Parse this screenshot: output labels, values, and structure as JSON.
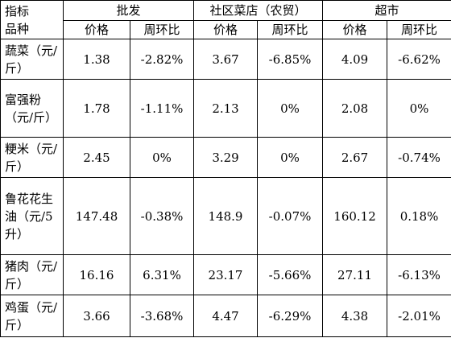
{
  "header": {
    "corner_line1": "指标",
    "corner_line2": "品种",
    "groups": [
      "批发",
      "社区菜店（农贸）",
      "超市"
    ],
    "price_label": "价格",
    "change_label": "周环比"
  },
  "rows": [
    {
      "name": "蔬菜（元/斤）",
      "values": [
        "1.38",
        "-2.82%",
        "3.67",
        "-6.85%",
        "4.09",
        "-6.62%"
      ]
    },
    {
      "name": "富强粉（元/斤）",
      "values": [
        "1.78",
        "-1.11%",
        "2.13",
        "0%",
        "2.08",
        "0%"
      ]
    },
    {
      "name": "粳米（元/斤）",
      "values": [
        "2.45",
        "0%",
        "3.29",
        "0%",
        "2.67",
        "-0.74%"
      ]
    },
    {
      "name": "鲁花花生油（元/5升）",
      "values": [
        "147.48",
        "-0.38%",
        "148.9",
        "-0.07%",
        "160.12",
        "0.18%"
      ]
    },
    {
      "name": "猪肉（元/斤）",
      "values": [
        "16.16",
        "6.31%",
        "23.17",
        "-5.66%",
        "27.11",
        "-6.13%"
      ]
    },
    {
      "name": "鸡蛋（元/斤）",
      "values": [
        "3.66",
        "-3.68%",
        "4.47",
        "-6.29%",
        "4.38",
        "-2.01%"
      ]
    }
  ]
}
